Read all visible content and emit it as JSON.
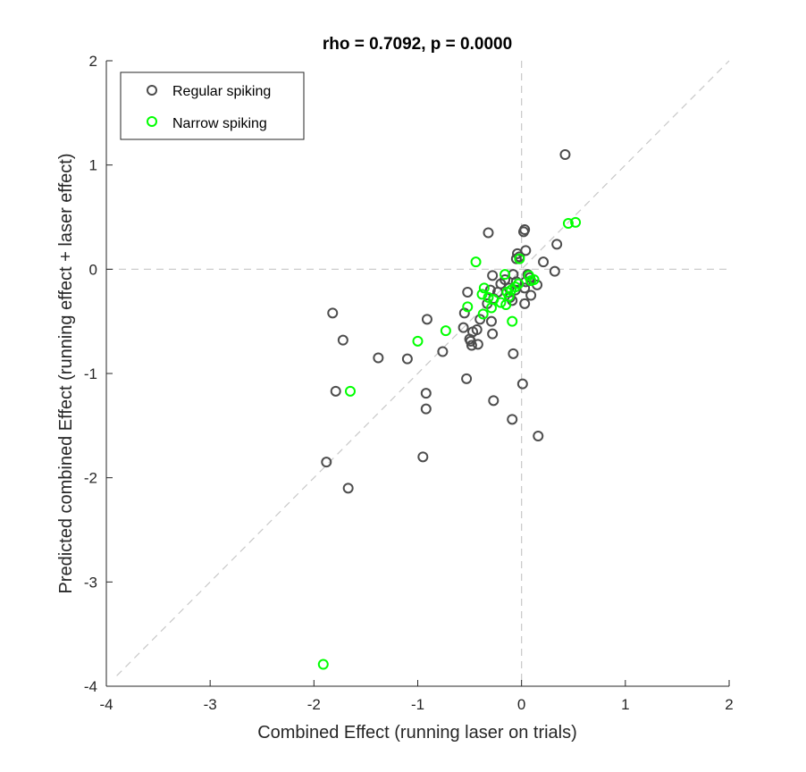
{
  "chart_data": {
    "type": "scatter",
    "title": "rho = 0.7092, p = 0.0000",
    "xlabel": "Combined Effect (running laser on trials)",
    "ylabel": "Predicted combined Effect (running effect + laser effect)",
    "xlim": [
      -4,
      2
    ],
    "ylim": [
      -4,
      2
    ],
    "xticks": [
      "-4",
      "-3",
      "-2",
      "-1",
      "0",
      "1",
      "2"
    ],
    "yticks": [
      "-4",
      "-3",
      "-2",
      "-1",
      "0",
      "1",
      "2"
    ],
    "grid": false,
    "legend": "top-left",
    "reference_lines": [
      "x = 0 (dashed)",
      "y = 0 (dashed)",
      "y = x (dashed)"
    ],
    "colors": {
      "regular": "#4d4d4d",
      "narrow": "#00ff00",
      "reference": "#c8c8c8",
      "axes": "#262626"
    },
    "series": [
      {
        "name": "Regular spiking",
        "color": "#4d4d4d",
        "points": [
          [
            0.42,
            1.1
          ],
          [
            -0.32,
            0.35
          ],
          [
            0.03,
            0.38
          ],
          [
            0.02,
            0.36
          ],
          [
            0.34,
            0.24
          ],
          [
            0.21,
            0.07
          ],
          [
            0.04,
            0.18
          ],
          [
            -0.04,
            0.15
          ],
          [
            -0.05,
            0.1
          ],
          [
            -0.02,
            0.12
          ],
          [
            0.32,
            -0.02
          ],
          [
            0.15,
            -0.15
          ],
          [
            0.08,
            -0.08
          ],
          [
            0.06,
            -0.05
          ],
          [
            0.04,
            -0.12
          ],
          [
            0.03,
            -0.18
          ],
          [
            0.09,
            -0.25
          ],
          [
            0.03,
            -0.33
          ],
          [
            -0.08,
            -0.05
          ],
          [
            -0.05,
            -0.12
          ],
          [
            -0.06,
            -0.2
          ],
          [
            -0.09,
            -0.3
          ],
          [
            -0.11,
            -0.27
          ],
          [
            -0.12,
            -0.18
          ],
          [
            -0.16,
            -0.1
          ],
          [
            -0.2,
            -0.14
          ],
          [
            -0.23,
            -0.22
          ],
          [
            -0.27,
            -0.28
          ],
          [
            -0.28,
            -0.06
          ],
          [
            -0.3,
            -0.2
          ],
          [
            -0.33,
            -0.33
          ],
          [
            -0.29,
            -0.5
          ],
          [
            -0.28,
            -0.62
          ],
          [
            -0.4,
            -0.48
          ],
          [
            -0.43,
            -0.58
          ],
          [
            -0.47,
            -0.6
          ],
          [
            -0.52,
            -0.22
          ],
          [
            -0.55,
            -0.42
          ],
          [
            -0.56,
            -0.56
          ],
          [
            -0.5,
            -0.67
          ],
          [
            -0.48,
            -0.73
          ],
          [
            -0.49,
            -0.69
          ],
          [
            -0.42,
            -0.72
          ],
          [
            -0.76,
            -0.79
          ],
          [
            -0.91,
            -0.48
          ],
          [
            -1.1,
            -0.86
          ],
          [
            -1.38,
            -0.85
          ],
          [
            -1.82,
            -0.42
          ],
          [
            -1.72,
            -0.68
          ],
          [
            -1.79,
            -1.17
          ],
          [
            -0.53,
            -1.05
          ],
          [
            -0.27,
            -1.26
          ],
          [
            -0.08,
            -0.81
          ],
          [
            0.01,
            -1.1
          ],
          [
            -0.09,
            -1.44
          ],
          [
            0.16,
            -1.6
          ],
          [
            -0.92,
            -1.19
          ],
          [
            -0.92,
            -1.34
          ],
          [
            -0.95,
            -1.8
          ],
          [
            -1.88,
            -1.85
          ],
          [
            -1.67,
            -2.1
          ]
        ]
      },
      {
        "name": "Narrow spiking",
        "color": "#00ff00",
        "points": [
          [
            0.52,
            0.45
          ],
          [
            0.45,
            0.44
          ],
          [
            -0.02,
            0.1
          ],
          [
            -0.44,
            0.07
          ],
          [
            -0.16,
            -0.05
          ],
          [
            0.07,
            -0.06
          ],
          [
            0.12,
            -0.1
          ],
          [
            0.09,
            -0.11
          ],
          [
            -0.03,
            -0.14
          ],
          [
            -0.06,
            -0.17
          ],
          [
            -0.1,
            -0.2
          ],
          [
            -0.14,
            -0.22
          ],
          [
            -0.12,
            -0.26
          ],
          [
            -0.36,
            -0.18
          ],
          [
            -0.38,
            -0.24
          ],
          [
            -0.32,
            -0.27
          ],
          [
            -0.27,
            -0.29
          ],
          [
            -0.2,
            -0.32
          ],
          [
            -0.15,
            -0.34
          ],
          [
            -0.29,
            -0.37
          ],
          [
            -0.37,
            -0.43
          ],
          [
            -0.52,
            -0.36
          ],
          [
            -0.09,
            -0.5
          ],
          [
            -0.73,
            -0.59
          ],
          [
            -1.0,
            -0.69
          ],
          [
            -1.65,
            -1.17
          ],
          [
            -1.91,
            -3.79
          ]
        ]
      }
    ]
  }
}
